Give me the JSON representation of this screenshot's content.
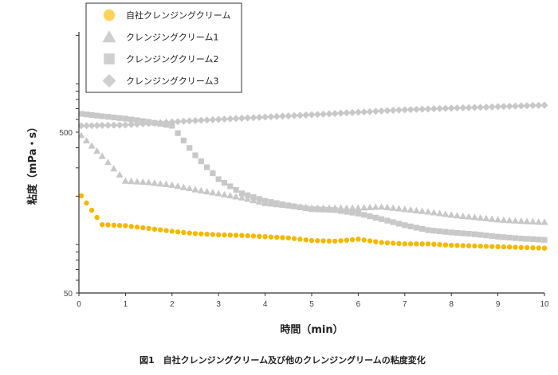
{
  "chart_data": {
    "type": "scatter",
    "title": "",
    "caption": "図1　自社クレンジングクリーム及び他のクレンジングリームの粘度変化",
    "xlabel": "時間（min）",
    "ylabel": "粘度（mPa・s）",
    "xlim": [
      0,
      10
    ],
    "ylim": [
      50,
      2100
    ],
    "yscale": "log",
    "x_ticks": [
      "0",
      "1",
      "2",
      "3",
      "4",
      "5",
      "6",
      "7",
      "8",
      "9",
      "10"
    ],
    "y_ticks": [
      "50",
      "500"
    ],
    "grid": false,
    "legend_position": "top-left",
    "x": [
      0.05,
      0.5,
      1,
      1.5,
      2,
      2.5,
      3,
      3.5,
      4,
      4.5,
      5,
      5.5,
      6,
      6.5,
      7,
      7.5,
      8,
      8.5,
      9,
      9.5,
      10
    ],
    "series": [
      {
        "name": "自社クレンジングクリーム",
        "marker": "circle",
        "color": "#f5b800",
        "values": [
          201,
          133,
          131,
          126,
          121,
          117,
          115,
          114,
          112,
          110,
          106,
          105,
          108,
          103,
          101,
          101,
          99,
          98,
          97,
          96,
          95
        ]
      },
      {
        "name": "クレンジングクリーム1",
        "marker": "triangle",
        "color": "#c8c8c8",
        "values": [
          478,
          355,
          249,
          244,
          235,
          220,
          208,
          196,
          181,
          175,
          169,
          169,
          169,
          172,
          166,
          160,
          153,
          148,
          143,
          140,
          138
        ]
      },
      {
        "name": "クレンジングクリーム2",
        "marker": "square",
        "color": "#c8c8c8",
        "values": [
          650,
          628,
          607,
          579,
          548,
          359,
          255,
          208,
          187,
          175,
          166,
          164,
          156,
          144,
          132,
          123,
          119,
          116,
          112,
          109,
          107
        ]
      },
      {
        "name": "クレンジングクリーム3",
        "marker": "diamond",
        "color": "#c8c8c8",
        "values": [
          548,
          551,
          554,
          566,
          579,
          590,
          600,
          610,
          621,
          631,
          642,
          653,
          665,
          677,
          689,
          697,
          705,
          712,
          720,
          728,
          736
        ]
      }
    ]
  }
}
